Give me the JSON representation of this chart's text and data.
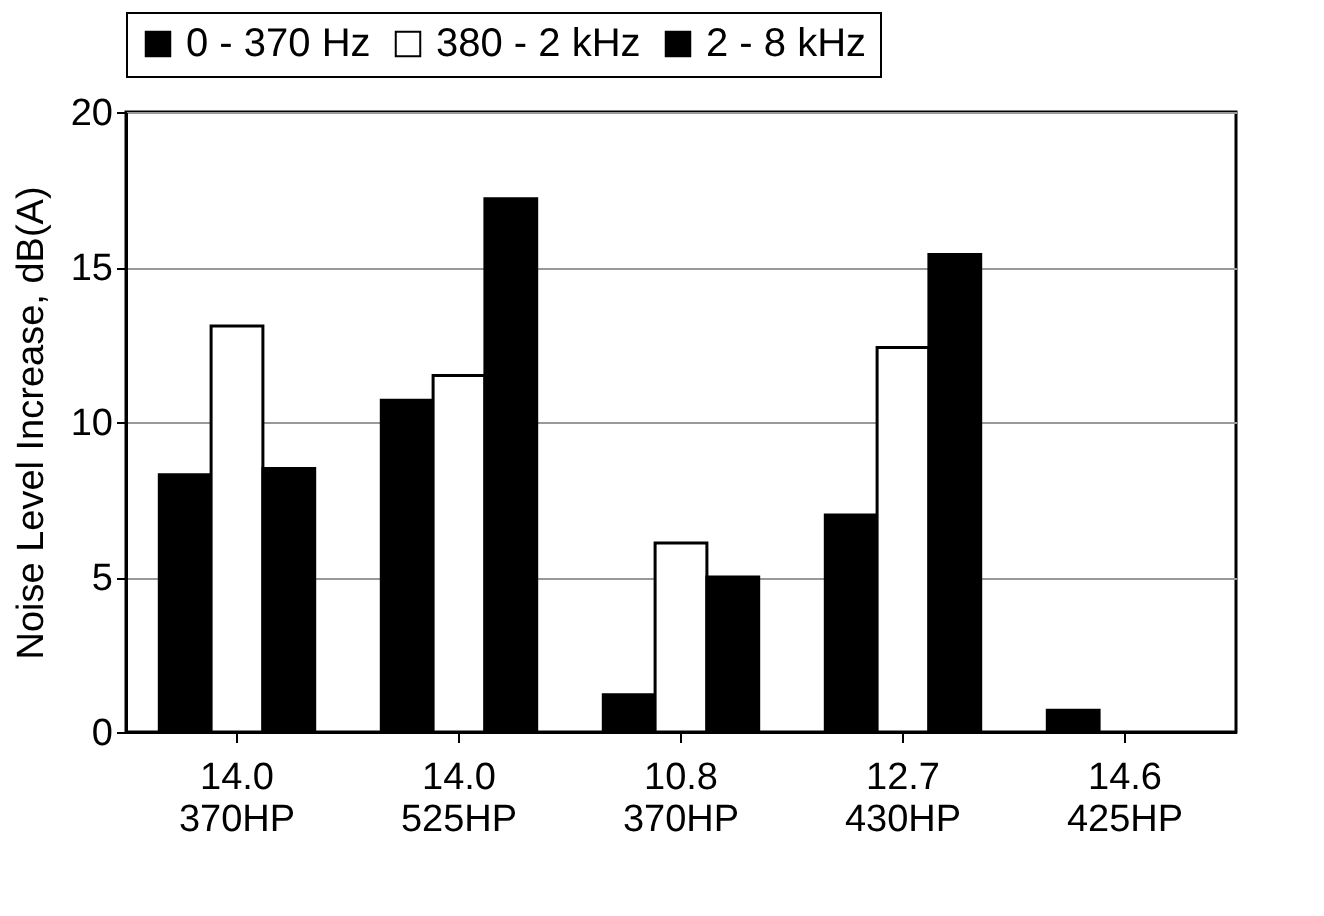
{
  "chart_data": {
    "type": "bar",
    "ylabel": "Noise Level Increase, dB(A)",
    "categories": [
      "14.0\n370HP",
      "14.0\n525HP",
      "10.8\n370HP",
      "12.7\n430HP",
      "14.6\n425HP"
    ],
    "series": [
      {
        "name": "0 - 370 Hz",
        "color": "#000000",
        "values": [
          8.3,
          10.7,
          1.2,
          7.0,
          0.7
        ]
      },
      {
        "name": "380 - 2 kHz",
        "color": "#ffffff",
        "values": [
          13.1,
          11.5,
          6.1,
          12.4,
          null
        ]
      },
      {
        "name": "2 - 8 kHz",
        "color": "#000000",
        "values": [
          8.5,
          17.2,
          5.0,
          15.4,
          null
        ]
      }
    ],
    "ylim": [
      0,
      20
    ],
    "yticks": [
      0,
      5,
      10,
      15,
      20
    ],
    "grid": "y",
    "legend": "top"
  }
}
